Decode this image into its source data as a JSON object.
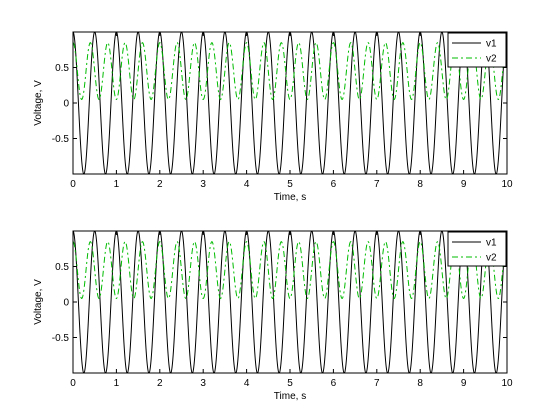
{
  "chart_data": [
    {
      "type": "line",
      "xlabel": "Time, s",
      "ylabel": "Voltage, V",
      "xlim": [
        0,
        10
      ],
      "ylim": [
        -1,
        1
      ],
      "xticks": [
        "0",
        "1",
        "2",
        "3",
        "4",
        "5",
        "6",
        "7",
        "8",
        "9",
        "10"
      ],
      "yticks": [
        "-0.5",
        "0",
        "0.5"
      ],
      "grid": false,
      "legend_placement": "top-right",
      "series": [
        {
          "name": "v1",
          "function": "cos",
          "frequency_hz": 2,
          "amplitude": 1,
          "offset": 0,
          "color": "#000000",
          "style": "solid"
        },
        {
          "name": "v2",
          "function": "cos",
          "frequency_hz": 2.5,
          "amplitude": 0.4,
          "offset": 0.45,
          "color": "#00bb00",
          "style": "dashdot"
        }
      ]
    },
    {
      "type": "line",
      "xlabel": "Time, s",
      "ylabel": "Voltage, V",
      "xlim": [
        0,
        10
      ],
      "ylim": [
        -1,
        1
      ],
      "xticks": [
        "0",
        "1",
        "2",
        "3",
        "4",
        "5",
        "6",
        "7",
        "8",
        "9",
        "10"
      ],
      "yticks": [
        "-0.5",
        "0",
        "0.5"
      ],
      "grid": false,
      "legend_placement": "top-right",
      "series": [
        {
          "name": "v1",
          "function": "cos",
          "frequency_hz": 2,
          "amplitude": 1,
          "offset": 0,
          "color": "#000000",
          "style": "solid"
        },
        {
          "name": "v2",
          "function": "cos",
          "frequency_hz": 2.5,
          "amplitude": 0.4,
          "offset": 0.45,
          "color": "#00bb00",
          "style": "dashdot"
        }
      ]
    }
  ]
}
